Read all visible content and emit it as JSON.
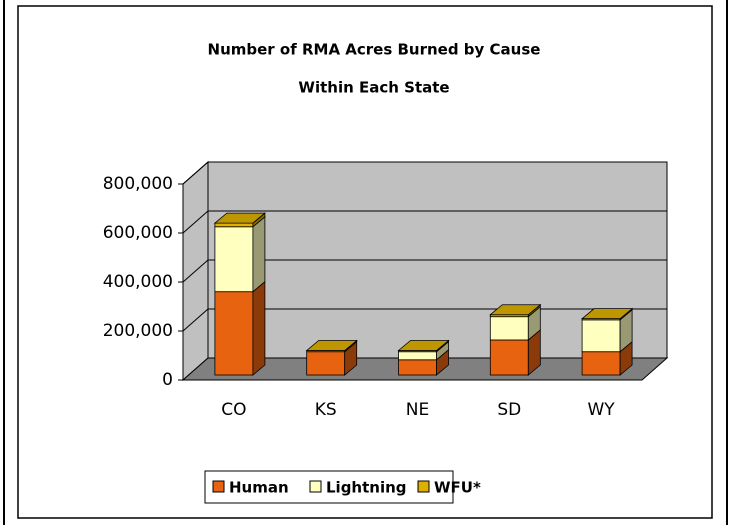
{
  "chart_data": {
    "type": "bar",
    "stacked": true,
    "title": "Number of RMA Acres Burned by Cause",
    "subtitle": "Within Each State",
    "categories": [
      "CO",
      "KS",
      "NE",
      "SD",
      "WY"
    ],
    "series": [
      {
        "name": "Human",
        "color": "#e8630f",
        "values": [
          340000,
          95000,
          62000,
          143000,
          95000
        ]
      },
      {
        "name": "Lightning",
        "color": "#ffffc0",
        "values": [
          265000,
          0,
          33000,
          95000,
          130000
        ]
      },
      {
        "name": "WFU*",
        "color": "#e0b000",
        "values": [
          15000,
          5000,
          5000,
          8000,
          5000
        ]
      }
    ],
    "ylim": [
      0,
      800000
    ],
    "yticks": [
      0,
      {
        "value": 200000,
        "label": "200,000"
      },
      {
        "value": 400000,
        "label": "400,000"
      },
      {
        "value": 600000,
        "label": "600,000"
      },
      {
        "value": 800000,
        "label": "800,000"
      }
    ],
    "grid": true,
    "legend": "bottom"
  }
}
